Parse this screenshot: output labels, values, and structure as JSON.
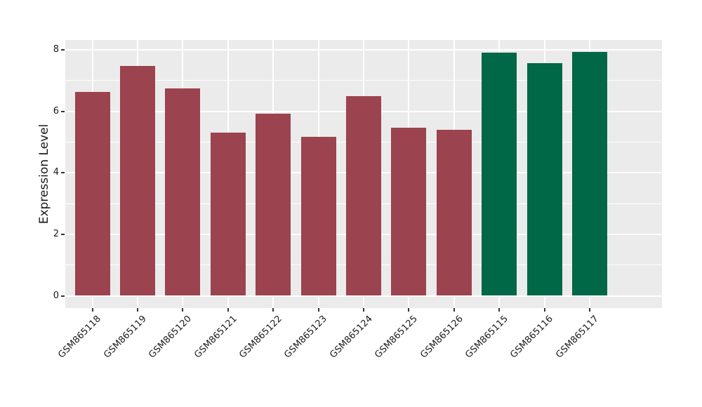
{
  "chart_data": {
    "type": "bar",
    "title": "",
    "xlabel": "",
    "ylabel": "Expression Level",
    "ylim": [
      0,
      8
    ],
    "yticks": [
      0,
      2,
      4,
      6,
      8
    ],
    "yticks_minor": [
      1,
      3,
      5,
      7
    ],
    "grid": "major and minor horizontal white lines, major vertical white lines at category centers",
    "legend": "none",
    "categories": [
      "GSM865118",
      "GSM865119",
      "GSM865120",
      "GSM865121",
      "GSM865122",
      "GSM865123",
      "GSM865124",
      "GSM865125",
      "GSM865126",
      "GSM865115",
      "GSM865116",
      "GSM865117"
    ],
    "values": [
      6.63,
      7.48,
      6.74,
      5.3,
      5.92,
      5.17,
      6.5,
      5.46,
      5.39,
      7.9,
      7.57,
      7.93
    ],
    "bar_colors": [
      "#9B434E",
      "#9B434E",
      "#9B434E",
      "#9B434E",
      "#9B434E",
      "#9B434E",
      "#9B434E",
      "#9B434E",
      "#9B434E",
      "#006747",
      "#006747",
      "#006747"
    ],
    "x_label_rotation_deg": 45,
    "colors": {
      "group_red": "#9B434E",
      "group_green": "#006747",
      "panel_background": "#EBEBEB",
      "gridline": "#FFFFFF",
      "tick_mark": "#333333",
      "axis_text": "#1A1A1A",
      "figure_background": "#FFFFFF"
    }
  }
}
